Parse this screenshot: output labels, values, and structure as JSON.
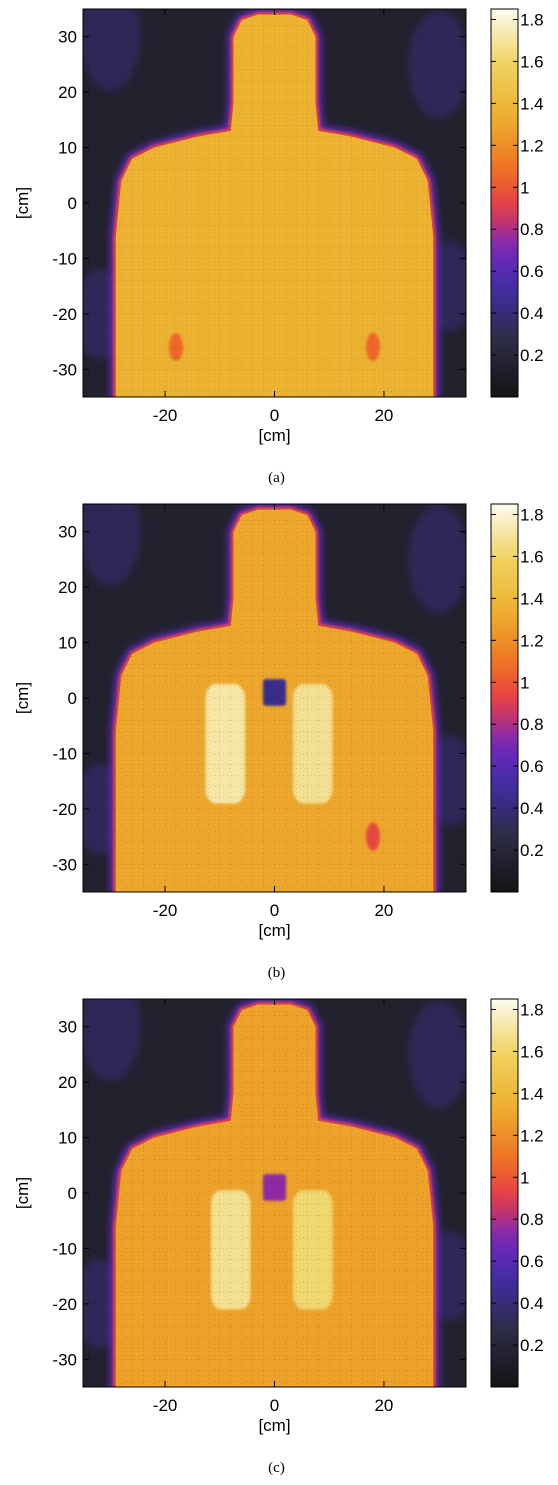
{
  "chart_data": [
    {
      "type": "heatmap",
      "caption": "(a)",
      "xlabel": "[cm]",
      "ylabel": "[cm]",
      "xlim": [
        -35,
        35
      ],
      "ylim": [
        -35,
        35
      ],
      "xticks": [
        "-20",
        "0",
        "20"
      ],
      "yticks": [
        "30",
        "20",
        "10",
        "0",
        "-10",
        "-20",
        "-30"
      ],
      "colorbar": {
        "range": [
          0,
          1.85
        ],
        "ticks": [
          "1.8",
          "1.6",
          "1.4",
          "1.2",
          "1",
          "0.8",
          "0.6",
          "0.4",
          "0.2"
        ],
        "colormap": "thermal"
      },
      "background_value": 0.15,
      "body_value": 1.36,
      "features": [
        {
          "name": "left arm region",
          "x": -18,
          "y": -26,
          "value": 1.05
        },
        {
          "name": "right arm region",
          "x": 18,
          "y": -26,
          "value": 1.05
        }
      ]
    },
    {
      "type": "heatmap",
      "caption": "(b)",
      "xlabel": "[cm]",
      "ylabel": "[cm]",
      "xlim": [
        -35,
        35
      ],
      "ylim": [
        -35,
        35
      ],
      "xticks": [
        "-20",
        "0",
        "20"
      ],
      "yticks": [
        "30",
        "20",
        "10",
        "0",
        "-10",
        "-20",
        "-30"
      ],
      "colorbar": {
        "range": [
          0,
          1.85
        ],
        "ticks": [
          "1.8",
          "1.6",
          "1.4",
          "1.2",
          "1",
          "0.8",
          "0.6",
          "0.4",
          "0.2"
        ],
        "colormap": "thermal"
      },
      "background_value": 0.15,
      "body_value": 1.3,
      "features": [
        {
          "name": "left lung",
          "x": -9,
          "y": -8,
          "value": 1.72
        },
        {
          "name": "right lung",
          "x": 7,
          "y": -8,
          "value": 1.68
        },
        {
          "name": "upper chest inclusion",
          "x": 0,
          "y": 1,
          "value": 0.45
        },
        {
          "name": "right arm region",
          "x": 18,
          "y": -25,
          "value": 0.95
        }
      ]
    },
    {
      "type": "heatmap",
      "caption": "(c)",
      "xlabel": "[cm]",
      "ylabel": "[cm]",
      "xlim": [
        -35,
        35
      ],
      "ylim": [
        -35,
        35
      ],
      "xticks": [
        "-20",
        "0",
        "20"
      ],
      "yticks": [
        "30",
        "20",
        "10",
        "0",
        "-10",
        "-20",
        "-30"
      ],
      "colorbar": {
        "range": [
          0,
          1.85
        ],
        "ticks": [
          "1.8",
          "1.6",
          "1.4",
          "1.2",
          "1",
          "0.8",
          "0.6",
          "0.4",
          "0.2"
        ],
        "colormap": "thermal"
      },
      "background_value": 0.15,
      "body_value": 1.28,
      "features": [
        {
          "name": "left lung",
          "x": -8,
          "y": -10,
          "value": 1.68
        },
        {
          "name": "right lung",
          "x": 7,
          "y": -10,
          "value": 1.62
        },
        {
          "name": "upper chest inclusion",
          "x": 0,
          "y": 1,
          "value": 0.75
        }
      ]
    }
  ],
  "colors": {
    "background_low": "#2c2c3c",
    "body": "#e8b53a",
    "lung": "#f6f3cc",
    "edge": "#5a34c8"
  }
}
